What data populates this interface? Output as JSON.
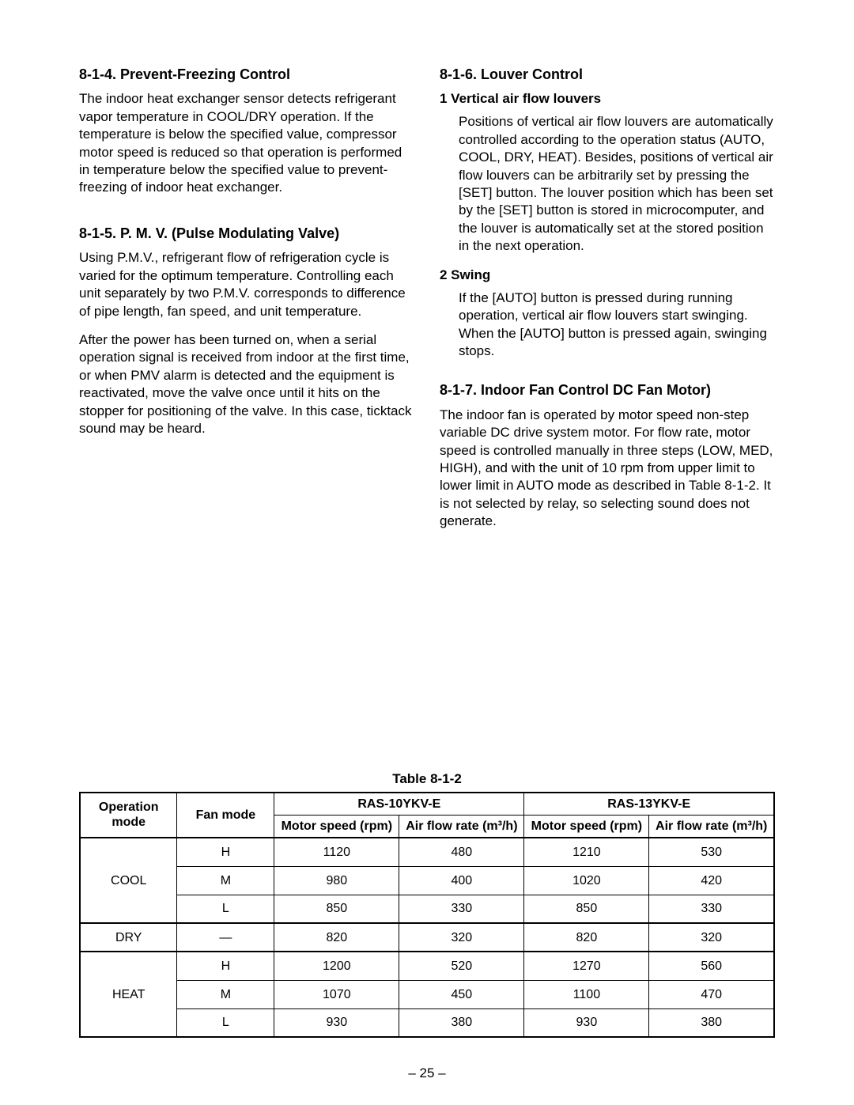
{
  "left": {
    "s814": {
      "heading": "8-1-4.  Prevent-Freezing Control",
      "p1": "The indoor heat exchanger sensor detects refrigerant vapor temperature in COOL/DRY operation. If the temperature is below the specified value, compressor motor speed is reduced so that operation is performed in temperature below the specified value to prevent-freezing of indoor heat exchanger."
    },
    "s815": {
      "heading": "8-1-5.  P. M. V. (Pulse Modulating Valve)",
      "p1": "Using P.M.V., refrigerant flow of refrigeration cycle is varied for the optimum temperature.  Controlling each unit separately by two P.M.V. corresponds to difference of pipe length, fan speed, and unit temperature.",
      "p2": "After the power has been turned on, when a serial operation signal is received from indoor at the first time, or when PMV alarm is detected and the equipment is reactivated, move the valve once until it hits on the stopper for positioning of the valve. In this case, ticktack sound may be heard."
    }
  },
  "right": {
    "s816": {
      "heading": "8-1-6.  Louver Control",
      "sub1": "1  Vertical air flow louvers",
      "p1": "Positions of vertical air flow louvers are automatically controlled according to the operation status (AUTO, COOL, DRY, HEAT).  Besides, positions of vertical air flow louvers can be arbitrarily set by pressing the [SET] button. The louver position which has been set by the [SET] button is stored in microcomputer, and the louver is automatically set at the stored position in the next operation.",
      "sub2": "2  Swing",
      "p2": "If the [AUTO] button is pressed during running operation, vertical air flow louvers start swinging. When the [AUTO] button is pressed again, swinging stops."
    },
    "s817": {
      "heading": "8-1-7.  Indoor Fan Control DC Fan Motor)",
      "p1": "The indoor fan is operated by motor speed non-step variable DC drive system motor.  For flow rate, motor speed is controlled manually in three steps (LOW, MED, HIGH), and with the unit of 10 rpm from upper limit to lower limit in AUTO mode as described in Table 8-1-2.  It is not selected by relay, so selecting sound does not generate."
    }
  },
  "table": {
    "caption": "Table  8-1-2",
    "head": {
      "op": "Operation mode",
      "fan": "Fan mode",
      "model1": "RAS-10YKV-E",
      "model2": "RAS-13YKV-E",
      "ms": "Motor speed (rpm)",
      "af": "Air flow rate (m³/h)"
    },
    "rows": [
      {
        "op": "COOL",
        "fan": "H",
        "m1s": "1120",
        "m1a": "480",
        "m2s": "1210",
        "m2a": "530"
      },
      {
        "fan": "M",
        "m1s": "980",
        "m1a": "400",
        "m2s": "1020",
        "m2a": "420"
      },
      {
        "fan": "L",
        "m1s": "850",
        "m1a": "330",
        "m2s": "850",
        "m2a": "330"
      },
      {
        "op": "DRY",
        "fan": "—",
        "m1s": "820",
        "m1a": "320",
        "m2s": "820",
        "m2a": "320"
      },
      {
        "op": "HEAT",
        "fan": "H",
        "m1s": "1200",
        "m1a": "520",
        "m2s": "1270",
        "m2a": "560"
      },
      {
        "fan": "M",
        "m1s": "1070",
        "m1a": "450",
        "m2s": "1100",
        "m2a": "470"
      },
      {
        "fan": "L",
        "m1s": "930",
        "m1a": "380",
        "m2s": "930",
        "m2a": "380"
      }
    ]
  },
  "pageNumber": "– 25 –"
}
